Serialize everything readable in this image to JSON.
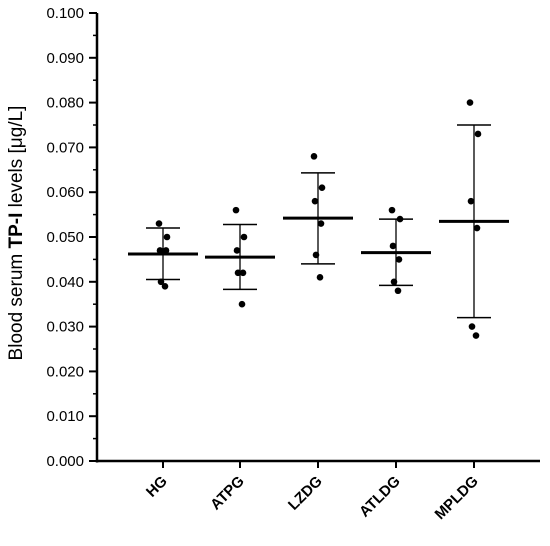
{
  "chart_data": {
    "type": "scatter",
    "ylabel_parts": [
      "Blood serum ",
      "TP-I",
      " levels [μg/L]"
    ],
    "xlabel": "",
    "ylim": [
      0,
      0.1
    ],
    "yticks": [
      "0.000",
      "0.010",
      "0.020",
      "0.030",
      "0.040",
      "0.050",
      "0.060",
      "0.070",
      "0.080",
      "0.090",
      "0.100"
    ],
    "categories": [
      "HG",
      "ATPG",
      "LZDG",
      "ATLDG",
      "MPLDG"
    ],
    "groups": [
      {
        "name": "HG",
        "points": [
          0.053,
          0.05,
          0.047,
          0.047,
          0.04,
          0.039
        ],
        "mean": 0.0462,
        "sd_low": 0.0405,
        "sd_high": 0.052
      },
      {
        "name": "ATPG",
        "points": [
          0.056,
          0.05,
          0.047,
          0.042,
          0.042,
          0.035
        ],
        "mean": 0.0455,
        "sd_low": 0.0383,
        "sd_high": 0.0528
      },
      {
        "name": "LZDG",
        "points": [
          0.068,
          0.061,
          0.058,
          0.053,
          0.046,
          0.041
        ],
        "mean": 0.0542,
        "sd_low": 0.044,
        "sd_high": 0.0643
      },
      {
        "name": "ATLDG",
        "points": [
          0.056,
          0.054,
          0.048,
          0.045,
          0.04,
          0.038
        ],
        "mean": 0.0465,
        "sd_low": 0.0392,
        "sd_high": 0.054
      },
      {
        "name": "MPLDG",
        "points": [
          0.08,
          0.073,
          0.058,
          0.052,
          0.03,
          0.028
        ],
        "mean": 0.0535,
        "sd_low": 0.032,
        "sd_high": 0.075
      }
    ]
  }
}
